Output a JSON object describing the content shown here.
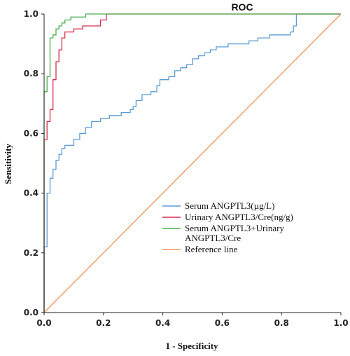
{
  "chart_data": {
    "type": "line",
    "title": "ROC",
    "xlabel": "1 - Specificity",
    "ylabel": "Sensitivity",
    "xlim": [
      0.0,
      1.0
    ],
    "ylim": [
      0.0,
      1.0
    ],
    "x_ticks": [
      "0.0",
      "0.2",
      "0.4",
      "0.6",
      "0.8",
      "1.0"
    ],
    "y_ticks": [
      "0.0",
      "0.2",
      "0.4",
      "0.6",
      "0.8",
      "1.0"
    ],
    "grid": false,
    "legend_position": "lower-right",
    "series": [
      {
        "name": "Serum ANGPTL3(µg/L)",
        "color": "#5b9bd5",
        "points": [
          [
            0.0,
            0.0
          ],
          [
            0.0,
            0.22
          ],
          [
            0.01,
            0.22
          ],
          [
            0.01,
            0.4
          ],
          [
            0.02,
            0.4
          ],
          [
            0.02,
            0.45
          ],
          [
            0.03,
            0.45
          ],
          [
            0.03,
            0.48
          ],
          [
            0.04,
            0.48
          ],
          [
            0.04,
            0.51
          ],
          [
            0.05,
            0.51
          ],
          [
            0.05,
            0.53
          ],
          [
            0.06,
            0.53
          ],
          [
            0.06,
            0.55
          ],
          [
            0.07,
            0.55
          ],
          [
            0.07,
            0.56
          ],
          [
            0.1,
            0.56
          ],
          [
            0.1,
            0.58
          ],
          [
            0.12,
            0.58
          ],
          [
            0.12,
            0.6
          ],
          [
            0.14,
            0.6
          ],
          [
            0.14,
            0.62
          ],
          [
            0.16,
            0.62
          ],
          [
            0.16,
            0.64
          ],
          [
            0.19,
            0.64
          ],
          [
            0.19,
            0.65
          ],
          [
            0.22,
            0.65
          ],
          [
            0.22,
            0.66
          ],
          [
            0.26,
            0.66
          ],
          [
            0.26,
            0.67
          ],
          [
            0.29,
            0.67
          ],
          [
            0.29,
            0.68
          ],
          [
            0.3,
            0.68
          ],
          [
            0.3,
            0.69
          ],
          [
            0.31,
            0.69
          ],
          [
            0.31,
            0.71
          ],
          [
            0.33,
            0.71
          ],
          [
            0.33,
            0.73
          ],
          [
            0.36,
            0.73
          ],
          [
            0.36,
            0.74
          ],
          [
            0.38,
            0.74
          ],
          [
            0.38,
            0.76
          ],
          [
            0.39,
            0.76
          ],
          [
            0.39,
            0.78
          ],
          [
            0.42,
            0.78
          ],
          [
            0.42,
            0.79
          ],
          [
            0.44,
            0.79
          ],
          [
            0.44,
            0.81
          ],
          [
            0.46,
            0.81
          ],
          [
            0.46,
            0.82
          ],
          [
            0.48,
            0.82
          ],
          [
            0.48,
            0.83
          ],
          [
            0.5,
            0.83
          ],
          [
            0.5,
            0.85
          ],
          [
            0.52,
            0.85
          ],
          [
            0.52,
            0.86
          ],
          [
            0.54,
            0.86
          ],
          [
            0.54,
            0.87
          ],
          [
            0.56,
            0.87
          ],
          [
            0.56,
            0.88
          ],
          [
            0.58,
            0.88
          ],
          [
            0.58,
            0.89
          ],
          [
            0.62,
            0.89
          ],
          [
            0.62,
            0.9
          ],
          [
            0.69,
            0.9
          ],
          [
            0.69,
            0.91
          ],
          [
            0.72,
            0.91
          ],
          [
            0.72,
            0.92
          ],
          [
            0.76,
            0.92
          ],
          [
            0.76,
            0.93
          ],
          [
            0.83,
            0.93
          ],
          [
            0.83,
            0.94
          ],
          [
            0.84,
            0.94
          ],
          [
            0.84,
            0.96
          ],
          [
            0.85,
            0.96
          ],
          [
            0.85,
            1.0
          ],
          [
            1.0,
            1.0
          ]
        ]
      },
      {
        "name": "Urinary ANGPTL3/Cre(ng/g)",
        "color": "#d62f4b",
        "points": [
          [
            0.0,
            0.0
          ],
          [
            0.0,
            0.58
          ],
          [
            0.01,
            0.58
          ],
          [
            0.01,
            0.64
          ],
          [
            0.02,
            0.64
          ],
          [
            0.02,
            0.68
          ],
          [
            0.03,
            0.68
          ],
          [
            0.03,
            0.78
          ],
          [
            0.04,
            0.78
          ],
          [
            0.04,
            0.84
          ],
          [
            0.05,
            0.84
          ],
          [
            0.05,
            0.88
          ],
          [
            0.06,
            0.88
          ],
          [
            0.06,
            0.92
          ],
          [
            0.07,
            0.92
          ],
          [
            0.07,
            0.94
          ],
          [
            0.1,
            0.94
          ],
          [
            0.1,
            0.95
          ],
          [
            0.13,
            0.95
          ],
          [
            0.13,
            0.96
          ],
          [
            0.19,
            0.96
          ],
          [
            0.19,
            0.98
          ],
          [
            0.21,
            0.98
          ],
          [
            0.21,
            1.0
          ],
          [
            1.0,
            1.0
          ]
        ]
      },
      {
        "name": "Serum ANGPTL3+Urinary ANGPTL3/Cre",
        "legend_lines": [
          "Serum ANGPTL3+Urinary",
          "ANGPTL3/Cre"
        ],
        "color": "#4caf50",
        "points": [
          [
            0.0,
            0.0
          ],
          [
            0.0,
            0.74
          ],
          [
            0.01,
            0.74
          ],
          [
            0.01,
            0.79
          ],
          [
            0.02,
            0.79
          ],
          [
            0.02,
            0.92
          ],
          [
            0.03,
            0.92
          ],
          [
            0.03,
            0.93
          ],
          [
            0.04,
            0.93
          ],
          [
            0.04,
            0.95
          ],
          [
            0.05,
            0.95
          ],
          [
            0.05,
            0.96
          ],
          [
            0.06,
            0.96
          ],
          [
            0.06,
            0.97
          ],
          [
            0.07,
            0.97
          ],
          [
            0.07,
            0.98
          ],
          [
            0.09,
            0.98
          ],
          [
            0.09,
            0.99
          ],
          [
            0.14,
            0.99
          ],
          [
            0.14,
            1.0
          ],
          [
            1.0,
            1.0
          ]
        ]
      },
      {
        "name": "Reference line",
        "color": "#f0955a",
        "points": [
          [
            0.0,
            0.0
          ],
          [
            1.0,
            1.0
          ]
        ]
      }
    ]
  }
}
